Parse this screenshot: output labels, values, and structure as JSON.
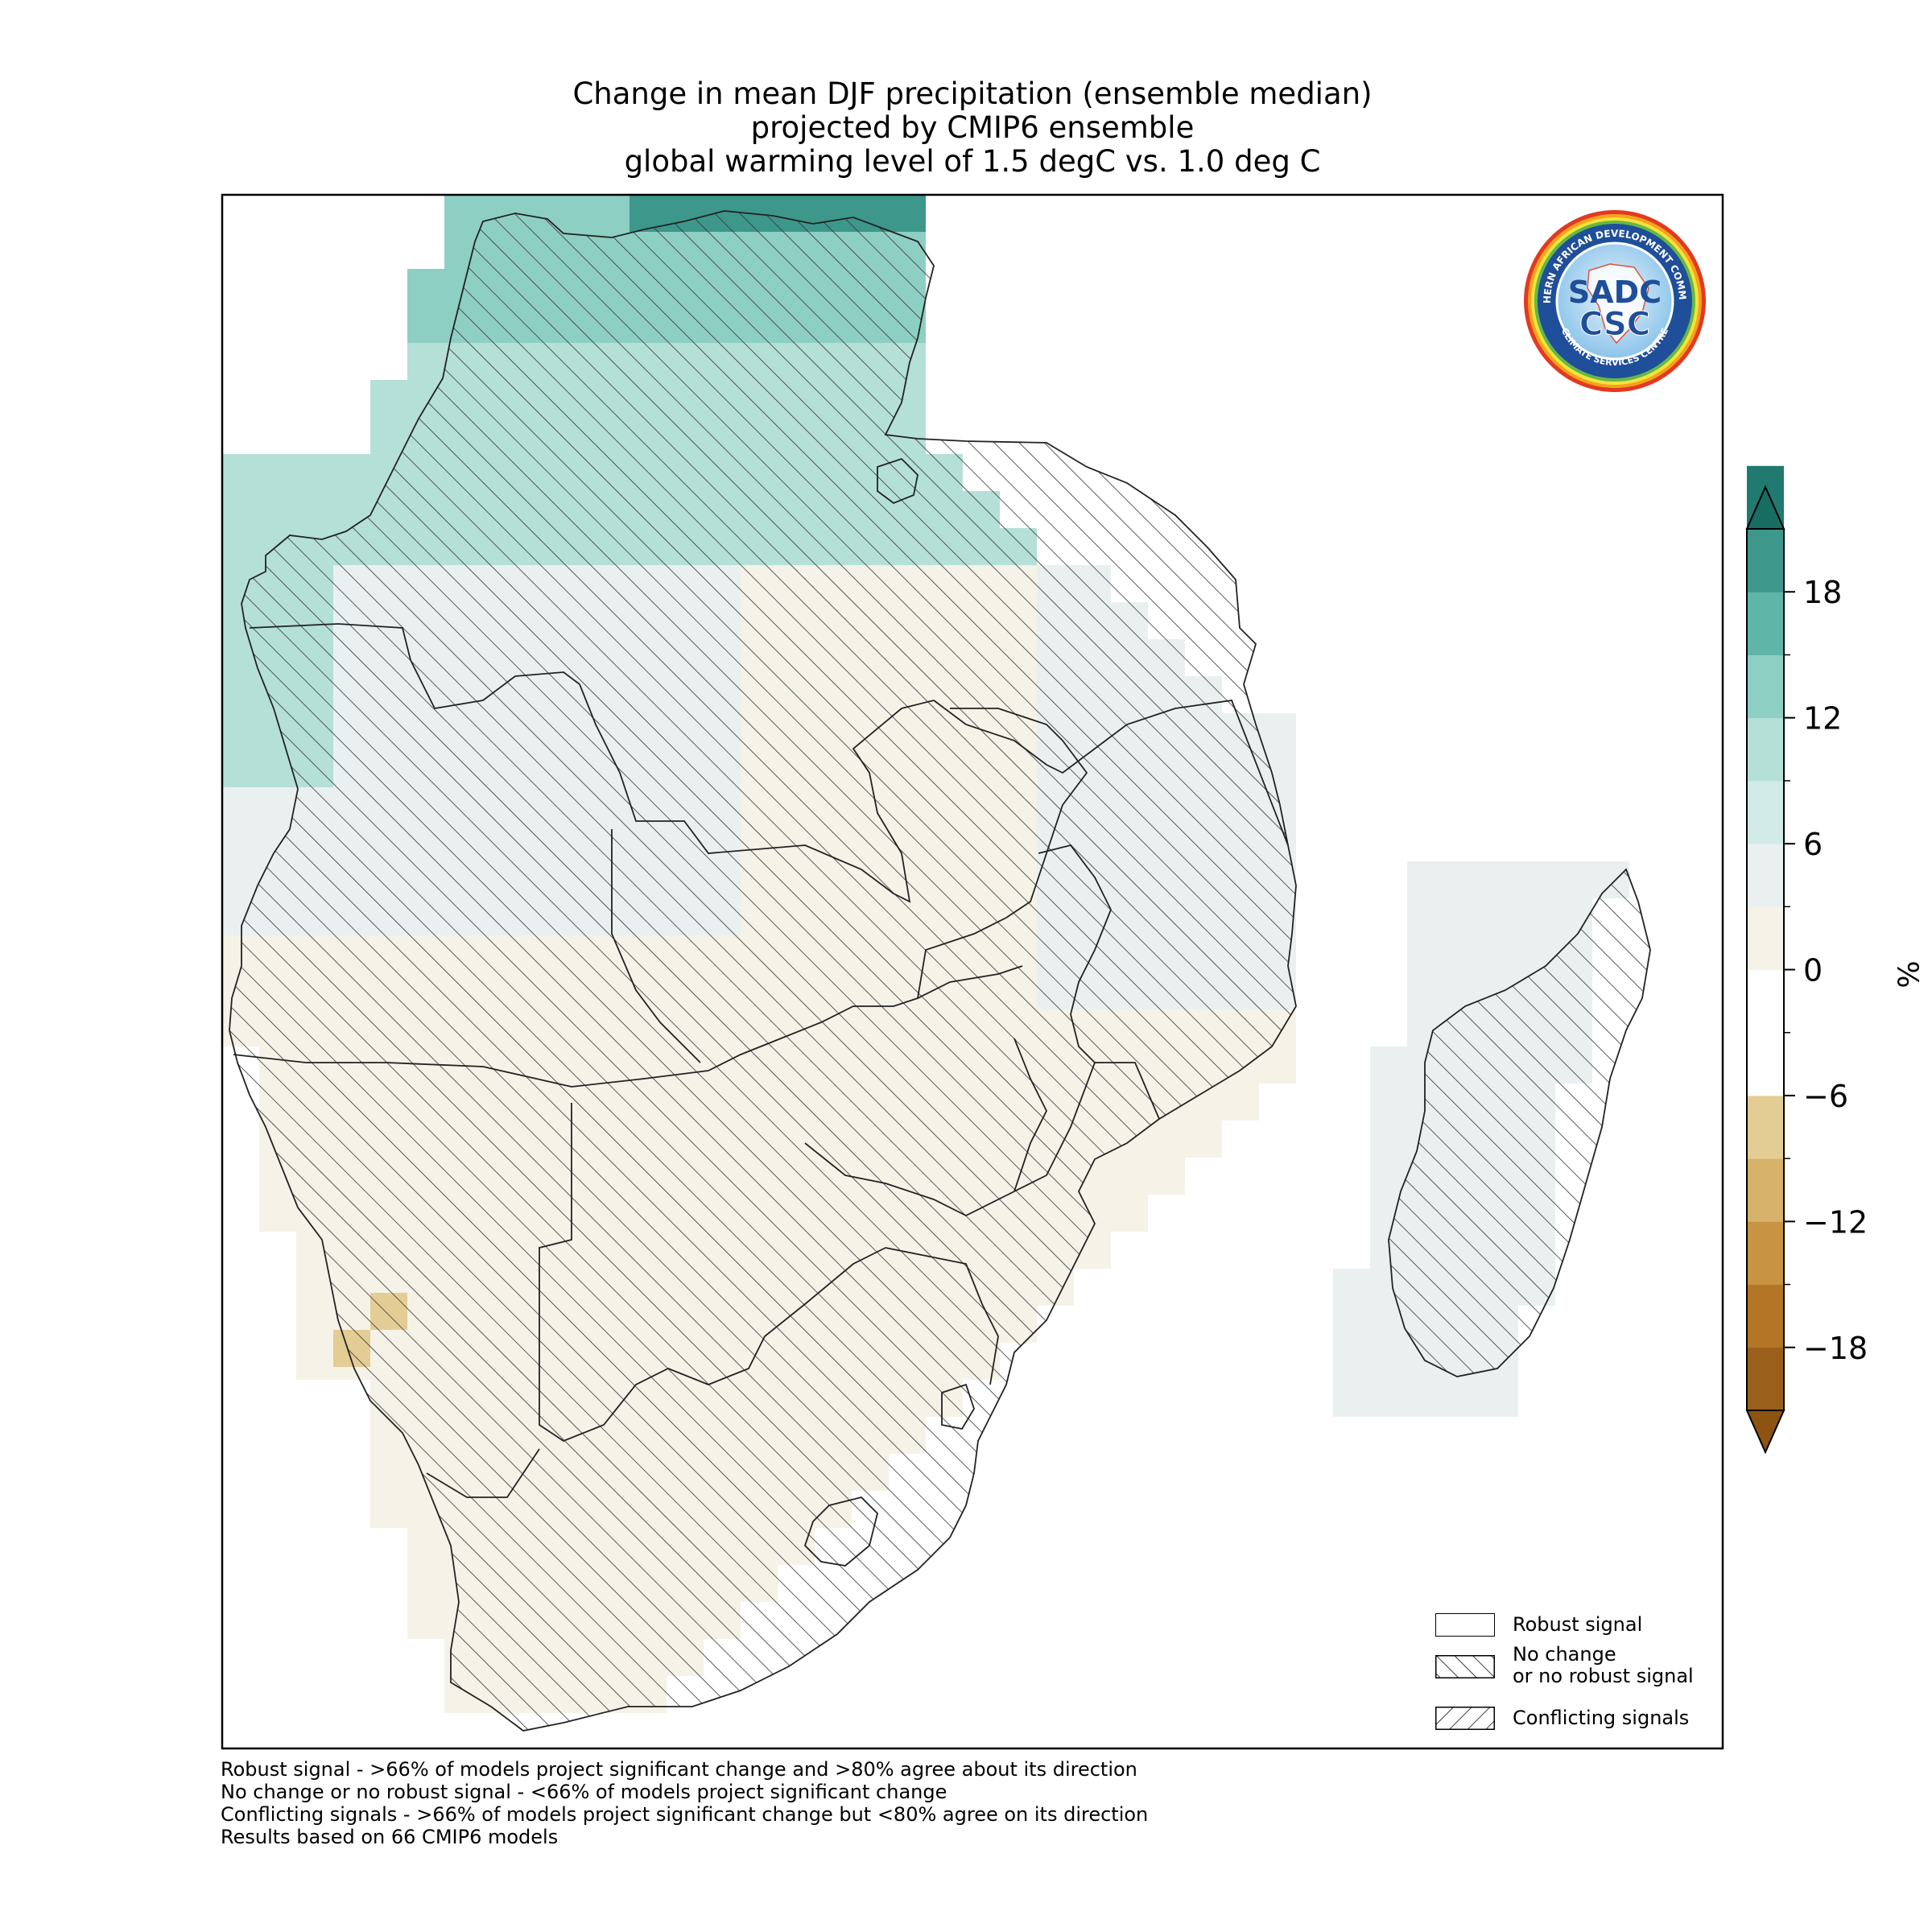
{
  "title": {
    "line1": "Change in mean DJF precipitation (ensemble median)",
    "line2": "projected by CMIP6 ensemble",
    "line3": "global warming level of 1.5 degC vs. 1.0 deg C"
  },
  "colorbar": {
    "unit": "%",
    "ticks": [
      "18",
      "12",
      "6",
      "0",
      "−6",
      "−12",
      "−18"
    ],
    "tick_values": [
      18,
      12,
      6,
      0,
      -6,
      -12,
      -18
    ],
    "range": [
      -21,
      21
    ],
    "step": 3,
    "colors": [
      "#9a5f1a",
      "#b37526",
      "#c89342",
      "#d6b26a",
      "#e4cd94",
      "#ffffff",
      "#ffffff",
      "#f5f2e8",
      "#eaf0f0",
      "#d2ebe6",
      "#b4e0d8",
      "#8ecfc3",
      "#5fb5a7",
      "#3d978b",
      "#207a70"
    ],
    "extend_low_color": "#8c5312",
    "extend_high_color": "#186d63"
  },
  "legend": {
    "items": [
      {
        "label": "Robust signal",
        "pattern": "none"
      },
      {
        "label": "No change\nor no robust signal",
        "pattern": "forward-hatch"
      },
      {
        "label": "Conflicting signals",
        "pattern": "back-hatch"
      }
    ],
    "item1": "Robust signal",
    "item2a": "No change",
    "item2b": "or no robust signal",
    "item3": "Conflicting signals"
  },
  "footnotes": {
    "line1": "Robust signal - >66% of models project significant change and >80% agree about its direction",
    "line2": "No change or no robust signal - <66% of models project significant change",
    "line3": "Conflicting signals - >66% of models project significant change but <80% agree on its direction",
    "line4": "Results based on 66 CMIP6 models"
  },
  "logo": {
    "ring_text": "SOUTHERN AFRICAN DEVELOPMENT COMMUNITY",
    "bottom_text": "CLIMATE SERVICES CENTRE",
    "top": "SADC",
    "bottom": "CSC"
  }
}
